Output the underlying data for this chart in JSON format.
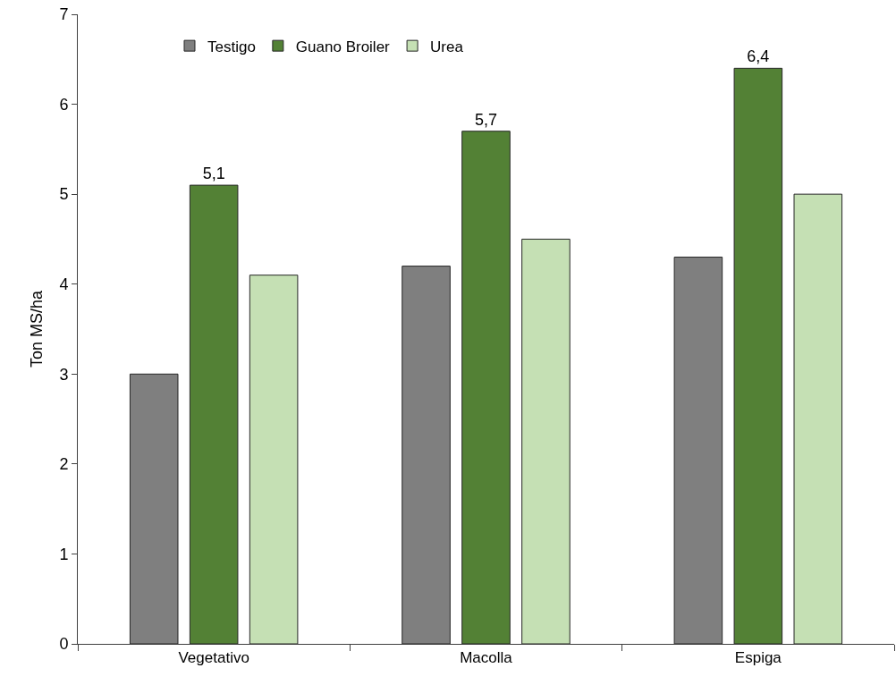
{
  "chart_data": {
    "type": "bar",
    "categories": [
      "Vegetativo",
      "Macolla",
      "Espiga"
    ],
    "ylabel": "Ton MS/ha",
    "ylim": [
      0,
      7
    ],
    "yticks": [
      0,
      1,
      2,
      3,
      4,
      5,
      6,
      7
    ],
    "legend": "top left",
    "series": [
      {
        "name": "Testigo",
        "color": "#7f7f7f",
        "values": [
          3.0,
          4.2,
          4.3
        ]
      },
      {
        "name": "Guano Broiler",
        "color": "#538135",
        "values": [
          5.1,
          5.7,
          6.4
        ],
        "value_labels": [
          "5,1",
          "5,7",
          "6,4"
        ]
      },
      {
        "name": "Urea",
        "color": "#c5e0b4",
        "values": [
          4.1,
          4.5,
          5.0
        ]
      }
    ]
  }
}
